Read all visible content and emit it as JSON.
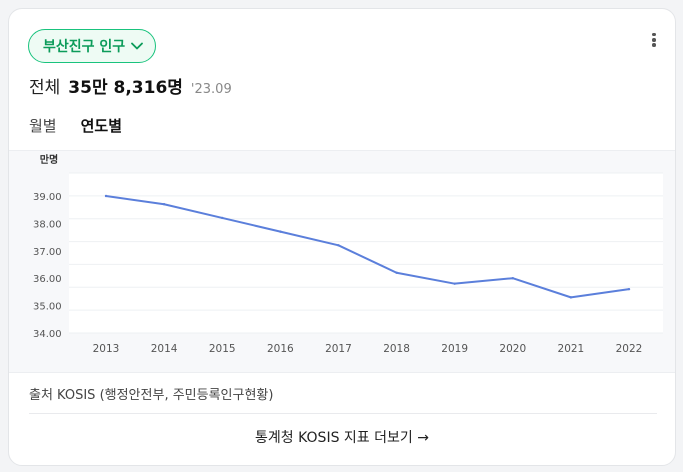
{
  "header": {
    "region_label": "부산진구 인구",
    "summary_label": "전체",
    "summary_value": "35만 8,316명",
    "summary_date": "'23.09"
  },
  "tabs": [
    {
      "label": "월별",
      "active": false
    },
    {
      "label": "연도별",
      "active": true
    }
  ],
  "chart_data": {
    "type": "line",
    "ylabel": "만명",
    "x": [
      "2013",
      "2014",
      "2015",
      "2016",
      "2017",
      "2018",
      "2019",
      "2020",
      "2021",
      "2022"
    ],
    "series": [
      {
        "values": [
          39.0,
          38.7,
          38.2,
          37.7,
          37.2,
          36.2,
          35.8,
          36.0,
          35.3,
          35.6
        ]
      }
    ],
    "yticks": [
      "34.00",
      "35.00",
      "36.00",
      "37.00",
      "38.00",
      "39.00"
    ],
    "ylim": [
      34,
      39
    ],
    "line_color": "#5b7fdb",
    "grid": true
  },
  "footer": {
    "source": "출처 KOSIS (행정안전부, 주민등록인구현황)",
    "link_label": "통계청 KOSIS 지표 더보기 →"
  },
  "colors": {
    "accent": "#19c37d",
    "accent_text": "#0c9c5a"
  }
}
